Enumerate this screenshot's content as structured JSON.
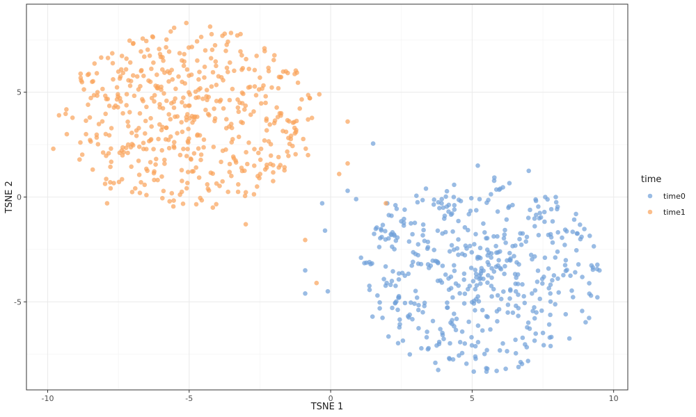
{
  "chart_data": {
    "type": "scatter",
    "xlabel": "TSNE 1",
    "ylabel": "TSNE 2",
    "xlim": [
      -10.75,
      10.5
    ],
    "ylim": [
      -9.2,
      9.2
    ],
    "x_ticks": [
      -10,
      -5,
      0,
      5,
      10
    ],
    "y_ticks": [
      -5,
      0,
      5
    ],
    "x_tick_labels": [
      "-10",
      "-5",
      "0",
      "5",
      "10"
    ],
    "y_tick_labels": [
      "-5",
      "0",
      "5"
    ],
    "grid": true,
    "legend": {
      "title": "time",
      "position": "right"
    },
    "series": [
      {
        "name": "time0",
        "color": "#6f9fd8",
        "cluster": {
          "cx": 5.3,
          "cy": -3.7,
          "rx": 4.3,
          "ry": 4.7,
          "n": 480,
          "seed": 11
        },
        "points": [
          [
            1.5,
            2.55
          ],
          [
            0.6,
            0.3
          ],
          [
            0.9,
            -0.1
          ],
          [
            -0.3,
            -0.3
          ],
          [
            -0.2,
            -1.6
          ],
          [
            -0.9,
            -3.5
          ],
          [
            -0.9,
            -4.6
          ],
          [
            -0.1,
            -4.5
          ],
          [
            2.0,
            -0.3
          ],
          [
            9.5,
            -3.5
          ],
          [
            9.3,
            -2.35
          ],
          [
            9.2,
            -4.7
          ],
          [
            4.8,
            -7.95
          ],
          [
            3.8,
            -8.25
          ],
          [
            7.0,
            1.25
          ],
          [
            5.2,
            1.5
          ]
        ]
      },
      {
        "name": "time1",
        "color": "#f9a25a",
        "cluster": {
          "cx": -5.0,
          "cy": 3.8,
          "rx": 4.4,
          "ry": 4.4,
          "n": 500,
          "seed": 29
        },
        "points": [
          [
            -9.8,
            2.3
          ],
          [
            -9.6,
            3.9
          ],
          [
            -5.1,
            8.3
          ],
          [
            -0.4,
            4.9
          ],
          [
            -0.8,
            3.7
          ],
          [
            0.6,
            3.6
          ],
          [
            0.6,
            1.6
          ],
          [
            0.3,
            1.1
          ],
          [
            -0.8,
            2.0
          ],
          [
            -0.9,
            -2.05
          ],
          [
            -0.5,
            -4.1
          ],
          [
            1.95,
            -0.3
          ],
          [
            -7.9,
            -0.3
          ],
          [
            -3.0,
            -1.3
          ]
        ]
      }
    ]
  }
}
